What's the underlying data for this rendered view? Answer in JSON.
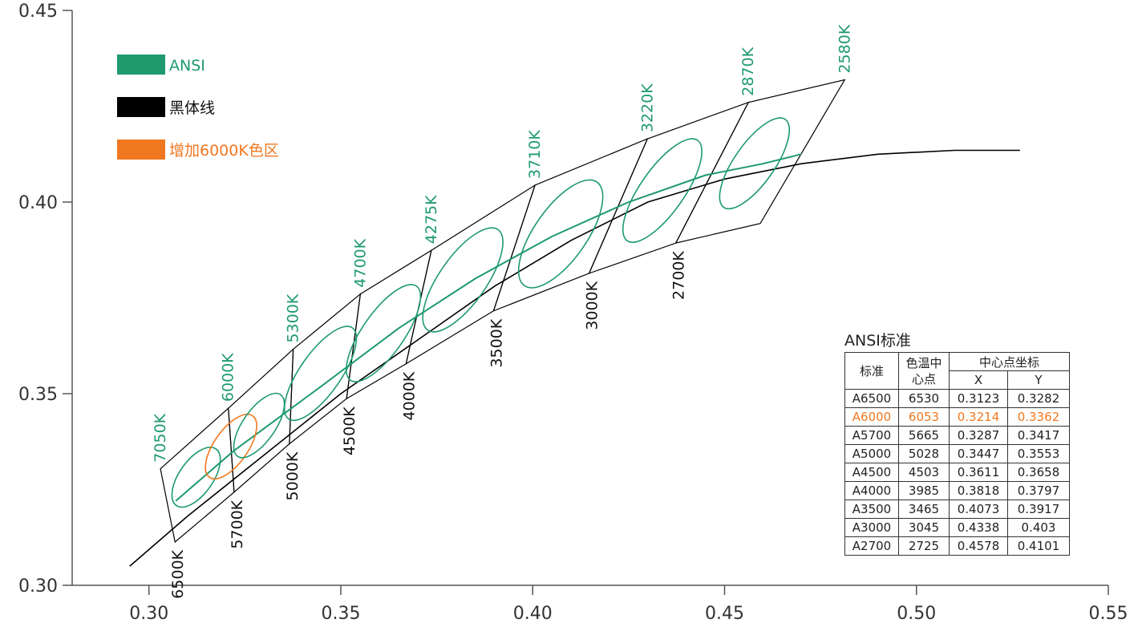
{
  "chart_data": {
    "type": "line",
    "xlim": [
      0.28,
      0.55
    ],
    "ylim": [
      0.3,
      0.45
    ],
    "x_ticks": [
      "0.30",
      "0.35",
      "0.40",
      "0.45",
      "0.50",
      "0.55"
    ],
    "y_ticks": [
      "0.30",
      "0.35",
      "0.40",
      "0.45"
    ],
    "legend": {
      "placement": "top-left",
      "items": [
        {
          "label": "ANSI",
          "color": "#1e9a6e"
        },
        {
          "label": "黑体线",
          "color": "#000000"
        },
        {
          "label": "增加6000K色区",
          "color": "#f07820"
        }
      ]
    },
    "blackbody_line": [
      [
        0.295,
        0.305
      ],
      [
        0.31,
        0.318
      ],
      [
        0.33,
        0.334
      ],
      [
        0.35,
        0.35
      ],
      [
        0.37,
        0.364
      ],
      [
        0.39,
        0.378
      ],
      [
        0.41,
        0.39
      ],
      [
        0.43,
        0.4
      ],
      [
        0.45,
        0.406
      ],
      [
        0.47,
        0.41
      ],
      [
        0.49,
        0.4125
      ],
      [
        0.51,
        0.4135
      ],
      [
        0.527,
        0.4135
      ]
    ],
    "ansi_line": [
      [
        0.307,
        0.322
      ],
      [
        0.322,
        0.335
      ],
      [
        0.345,
        0.352
      ],
      [
        0.365,
        0.367
      ],
      [
        0.385,
        0.38
      ],
      [
        0.405,
        0.391
      ],
      [
        0.425,
        0.4
      ],
      [
        0.445,
        0.407
      ],
      [
        0.46,
        0.41
      ],
      [
        0.47,
        0.4125
      ]
    ],
    "quadrangles": [
      {
        "name": "6500K",
        "points": [
          [
            0.303,
            0.3304
          ],
          [
            0.3207,
            0.3462
          ],
          [
            0.3222,
            0.3243
          ],
          [
            0.3068,
            0.3113
          ]
        ],
        "color": "#000000"
      },
      {
        "name": "6000K",
        "points": [
          [
            0.3207,
            0.3462
          ],
          [
            0.3376,
            0.3616
          ],
          [
            0.3366,
            0.3369
          ],
          [
            0.3222,
            0.3243
          ]
        ],
        "color": "#000000"
      },
      {
        "name": "5700K",
        "points": [
          [
            0.3376,
            0.3616
          ],
          [
            0.3551,
            0.376
          ],
          [
            0.3515,
            0.3487
          ],
          [
            0.3366,
            0.3369
          ]
        ],
        "color": "#000000"
      },
      {
        "name": "5000K",
        "points": [
          [
            0.3551,
            0.376
          ],
          [
            0.3736,
            0.3874
          ],
          [
            0.367,
            0.3578
          ],
          [
            0.3515,
            0.3487
          ]
        ],
        "color": "#000000"
      },
      {
        "name": "4500K",
        "points": [
          [
            0.3736,
            0.3874
          ],
          [
            0.4006,
            0.4044
          ],
          [
            0.3898,
            0.3716
          ],
          [
            0.367,
            0.3578
          ]
        ],
        "color": "#000000"
      },
      {
        "name": "4000K",
        "points": [
          [
            0.4006,
            0.4044
          ],
          [
            0.4299,
            0.4165
          ],
          [
            0.4147,
            0.3814
          ],
          [
            0.3898,
            0.3716
          ]
        ],
        "color": "#000000"
      },
      {
        "name": "3500K",
        "points": [
          [
            0.4299,
            0.4165
          ],
          [
            0.4562,
            0.426
          ],
          [
            0.4373,
            0.3893
          ],
          [
            0.4147,
            0.3814
          ]
        ],
        "color": "#000000"
      },
      {
        "name": "3000K",
        "points": [
          [
            0.4562,
            0.426
          ],
          [
            0.4813,
            0.4319
          ],
          [
            0.4593,
            0.3944
          ],
          [
            0.4373,
            0.3893
          ]
        ],
        "color": "#000000"
      }
    ],
    "ellipses": [
      {
        "center": [
          0.3123,
          0.3282
        ],
        "rx": 0.0044,
        "ry": 0.009,
        "rotation": 35,
        "color": "#1e9a6e"
      },
      {
        "center": [
          0.3214,
          0.3362
        ],
        "rx": 0.0044,
        "ry": 0.0098,
        "rotation": 35,
        "color": "#f07820"
      },
      {
        "center": [
          0.3287,
          0.3417
        ],
        "rx": 0.0042,
        "ry": 0.0098,
        "rotation": 35,
        "color": "#1e9a6e"
      },
      {
        "center": [
          0.3447,
          0.3553
        ],
        "rx": 0.0053,
        "ry": 0.0145,
        "rotation": 35,
        "color": "#1e9a6e"
      },
      {
        "center": [
          0.3611,
          0.3658
        ],
        "rx": 0.0054,
        "ry": 0.015,
        "rotation": 35,
        "color": "#1e9a6e"
      },
      {
        "center": [
          0.3818,
          0.3797
        ],
        "rx": 0.0061,
        "ry": 0.016,
        "rotation": 35,
        "color": "#1e9a6e"
      },
      {
        "center": [
          0.4073,
          0.3917
        ],
        "rx": 0.0068,
        "ry": 0.0165,
        "rotation": 35,
        "color": "#1e9a6e"
      },
      {
        "center": [
          0.4338,
          0.403
        ],
        "rx": 0.0057,
        "ry": 0.016,
        "rotation": 35,
        "color": "#1e9a6e"
      },
      {
        "center": [
          0.4578,
          0.4101
        ],
        "rx": 0.0052,
        "ry": 0.014,
        "rotation": 35,
        "color": "#1e9a6e"
      }
    ],
    "cct_labels_upper": [
      {
        "text": "7050K",
        "x": 0.303,
        "y": 0.3304
      },
      {
        "text": "6000K",
        "x": 0.3207,
        "y": 0.3462
      },
      {
        "text": "5300K",
        "x": 0.3376,
        "y": 0.3616
      },
      {
        "text": "4700K",
        "x": 0.3551,
        "y": 0.376
      },
      {
        "text": "4275K",
        "x": 0.3736,
        "y": 0.3874
      },
      {
        "text": "3710K",
        "x": 0.4006,
        "y": 0.4044
      },
      {
        "text": "3220K",
        "x": 0.4299,
        "y": 0.4165
      },
      {
        "text": "2870K",
        "x": 0.4562,
        "y": 0.426
      },
      {
        "text": "2580K",
        "x": 0.4813,
        "y": 0.4319
      }
    ],
    "cct_labels_lower": [
      {
        "text": "6500K",
        "x": 0.3068,
        "y": 0.3113
      },
      {
        "text": "5700K",
        "x": 0.3222,
        "y": 0.3243
      },
      {
        "text": "5000K",
        "x": 0.3366,
        "y": 0.3369
      },
      {
        "text": "4500K",
        "x": 0.3515,
        "y": 0.3487
      },
      {
        "text": "4000K",
        "x": 0.367,
        "y": 0.3578
      },
      {
        "text": "3500K",
        "x": 0.3898,
        "y": 0.3716
      },
      {
        "text": "3000K",
        "x": 0.4147,
        "y": 0.3814
      },
      {
        "text": "2700K",
        "x": 0.4373,
        "y": 0.3893
      }
    ]
  },
  "ansi_table": {
    "title": "ANSI标准",
    "headers": {
      "standard": "标准",
      "cct_center": "色温中心点",
      "center_coord": "中心点坐标",
      "x": "X",
      "y": "Y"
    },
    "highlight_color": "#f07820",
    "rows": [
      {
        "std": "A6500",
        "cct": "6530",
        "x": "0.3123",
        "y": "0.3282",
        "highlight": false
      },
      {
        "std": "A6000",
        "cct": "6053",
        "x": "0.3214",
        "y": "0.3362",
        "highlight": true
      },
      {
        "std": "A5700",
        "cct": "5665",
        "x": "0.3287",
        "y": "0.3417",
        "highlight": false
      },
      {
        "std": "A5000",
        "cct": "5028",
        "x": "0.3447",
        "y": "0.3553",
        "highlight": false
      },
      {
        "std": "A4500",
        "cct": "4503",
        "x": "0.3611",
        "y": "0.3658",
        "highlight": false
      },
      {
        "std": "A4000",
        "cct": "3985",
        "x": "0.3818",
        "y": "0.3797",
        "highlight": false
      },
      {
        "std": "A3500",
        "cct": "3465",
        "x": "0.4073",
        "y": "0.3917",
        "highlight": false
      },
      {
        "std": "A3000",
        "cct": "3045",
        "x": "0.4338",
        "y": "0.403",
        "highlight": false
      },
      {
        "std": "A2700",
        "cct": "2725",
        "x": "0.4578",
        "y": "0.4101",
        "highlight": false
      }
    ]
  }
}
